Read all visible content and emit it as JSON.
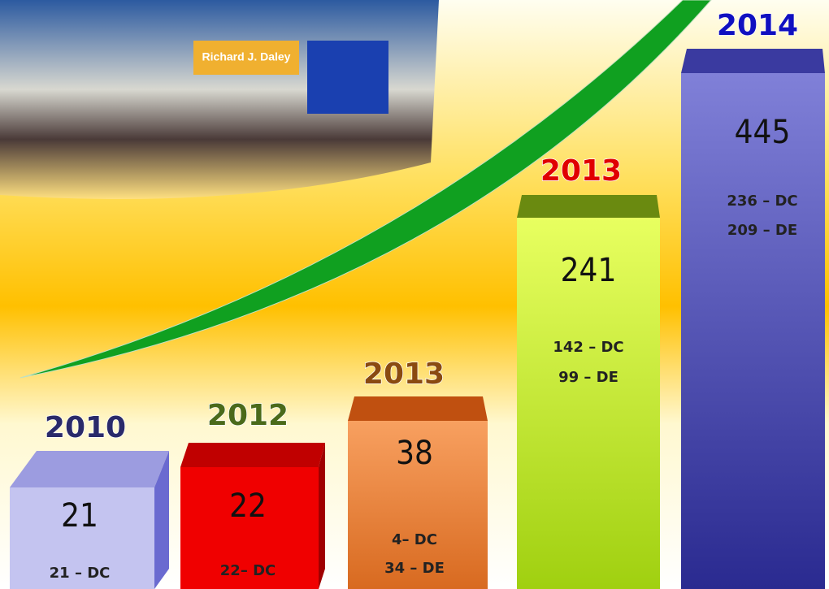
{
  "photo_sign": "Richard J. Daley",
  "bars": [
    {
      "year": "2010",
      "total": "21",
      "breakdown": [
        "21 – DC"
      ]
    },
    {
      "year": "2012",
      "total": "22",
      "breakdown": [
        "22– DC"
      ]
    },
    {
      "year": "2013",
      "total": "38",
      "breakdown": [
        "4– DC",
        "34 – DE"
      ]
    },
    {
      "year": "2013",
      "total": "241",
      "breakdown": [
        "142 – DC",
        "99 – DE"
      ]
    },
    {
      "year": "2014",
      "total": "445",
      "breakdown": [
        "236 – DC",
        "209 – DE"
      ]
    }
  ]
}
